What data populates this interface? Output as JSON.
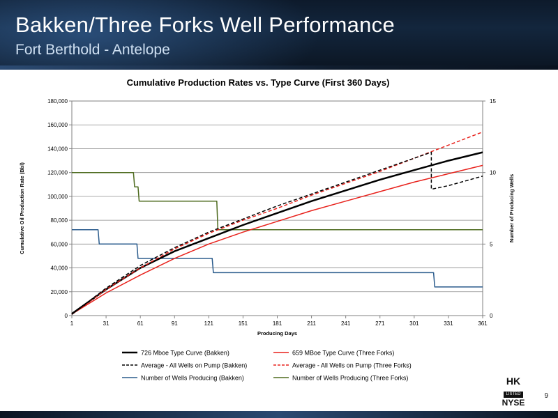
{
  "header": {
    "title": "Bakken/Three Forks Well Performance",
    "subtitle": "Fort Berthold - Antelope"
  },
  "page_number": "9",
  "logo": {
    "line1": "HK",
    "line2": "LISTED",
    "line3": "NYSE"
  },
  "chart_data": {
    "type": "line",
    "title": "Cumulative Production Rates vs. Type Curve (First 360 Days)",
    "xlabel": "Producing Days",
    "ylabel": "Cumulative Oil Production Rate (Bbl)",
    "y2label": "Number of Producing Wells",
    "xlim": [
      1,
      361
    ],
    "ylim": [
      0,
      180000
    ],
    "y2lim": [
      0,
      15
    ],
    "x_ticks": [
      1,
      31,
      61,
      91,
      121,
      151,
      181,
      211,
      241,
      271,
      301,
      331,
      361
    ],
    "x_tick_labels": [
      "1",
      "31",
      "61",
      "91",
      "121",
      "151",
      "181",
      "211",
      "241",
      "271",
      "301",
      "331",
      "361"
    ],
    "y_ticks": [
      0,
      20000,
      40000,
      60000,
      80000,
      100000,
      120000,
      140000,
      160000,
      180000
    ],
    "y_tick_labels": [
      "0",
      "20,000",
      "40,000",
      "60,000",
      "80,000",
      "100,000",
      "120,000",
      "140,000",
      "160,000",
      "180,000"
    ],
    "y2_ticks": [
      0,
      5,
      10,
      15
    ],
    "y2_tick_labels": [
      "0",
      "5",
      "10",
      "15"
    ],
    "grid": "horizontal",
    "legend_position": "bottom",
    "series": [
      {
        "name": "726 Mboe Type Curve (Bakken)",
        "color": "#000000",
        "dash": "solid",
        "axis": "left",
        "width": 2.5,
        "x": [
          1,
          31,
          61,
          91,
          121,
          151,
          181,
          211,
          241,
          271,
          301,
          331,
          361
        ],
        "y": [
          1500,
          22000,
          40000,
          54000,
          65000,
          76000,
          86000,
          96000,
          105000,
          114000,
          122000,
          130000,
          137000
        ]
      },
      {
        "name": "659 MBoe Type Curve (Three Forks)",
        "color": "#e8211b",
        "dash": "solid",
        "axis": "left",
        "width": 1.5,
        "x": [
          1,
          31,
          61,
          91,
          121,
          151,
          181,
          211,
          241,
          271,
          301,
          331,
          361
        ],
        "y": [
          1300,
          19000,
          34000,
          48000,
          60000,
          70000,
          79000,
          88000,
          96000,
          104000,
          112000,
          119000,
          126000
        ]
      },
      {
        "name": "Average - All Wells on Pump (Bakken)",
        "color": "#000000",
        "dash": "dashed",
        "axis": "left",
        "width": 1.5,
        "x": [
          1,
          31,
          61,
          91,
          121,
          151,
          181,
          211,
          241,
          271,
          301,
          316,
          316,
          331,
          361
        ],
        "y": [
          1000,
          23000,
          42000,
          57000,
          70000,
          81000,
          92000,
          102000,
          112000,
          122000,
          132000,
          137000,
          106000,
          109000,
          117000
        ]
      },
      {
        "name": "Average - All Wells on Pump (Three Forks)",
        "color": "#e8211b",
        "dash": "dashed",
        "axis": "left",
        "width": 1.5,
        "x": [
          1,
          31,
          61,
          91,
          121,
          151,
          181,
          211,
          241,
          271,
          301,
          331,
          361
        ],
        "y": [
          1000,
          22000,
          40000,
          56000,
          69000,
          80000,
          90000,
          101000,
          111000,
          121000,
          132000,
          143000,
          154000
        ]
      },
      {
        "name": "Number of Wells Producing (Bakken)",
        "color": "#2a5b8c",
        "dash": "solid",
        "axis": "right",
        "width": 1.5,
        "x": [
          1,
          24,
          25,
          58,
          59,
          124,
          125,
          318,
          319,
          361
        ],
        "y": [
          6,
          6,
          5,
          5,
          4,
          4,
          3,
          3,
          2,
          2
        ]
      },
      {
        "name": "Number of Wells Producing (Three Forks)",
        "color": "#4e6b1f",
        "dash": "solid",
        "axis": "right",
        "width": 1.5,
        "x": [
          1,
          55,
          56,
          59,
          60,
          128,
          129,
          361
        ],
        "y": [
          10,
          10,
          9,
          9,
          8,
          8,
          6,
          6
        ]
      }
    ]
  }
}
